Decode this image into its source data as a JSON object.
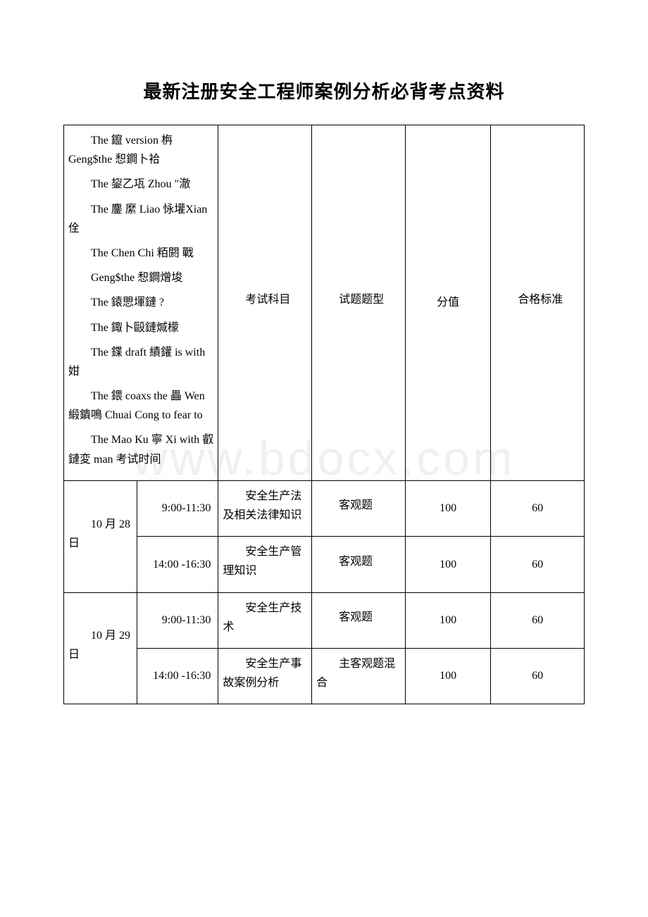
{
  "title": "最新注册安全工程师案例分析必背考点资料",
  "watermark": "www.bdocx.com",
  "header": {
    "col1_lines": [
      "The 鑹 version 栴 Geng$the 惒鐧卜袷",
      "The 鋆乙瓨 Zhou ″澈",
      "The 鏖 縻 Liao 怺壦Xian 佺",
      "The Chen Chi 粨閼 戰",
      "Geng$the 惒鐧熷埈",
      "The 鎱愳堚鏈 ?",
      "The 鋷卜毆鏈煘檬",
      "The 鍱 draft 績鑵 is with 姏",
      "The 鍡 coaxs the 畾 Wen 緞鐀鳴 Chuai Cong to fear to",
      "The Mao Ku 寧 Xi with 叡鏈変 man 考试时间"
    ],
    "col2": "考试科目",
    "col3": "试题题型",
    "col4": "分值",
    "col5": "合格标准"
  },
  "rows": [
    {
      "date": "10 月 28 日",
      "sessions": [
        {
          "time": "9:00-11:30",
          "subject": "安全生产法及相关法律知识",
          "type": "客观题",
          "score": "100",
          "pass": "60"
        },
        {
          "time": "14:00 -16:30",
          "subject": "安全生产管理知识",
          "type": "客观题",
          "score": "100",
          "pass": "60"
        }
      ]
    },
    {
      "date": "10 月 29 日",
      "sessions": [
        {
          "time": "9:00-11:30",
          "subject": "安全生产技术",
          "type": "客观题",
          "score": "100",
          "pass": "60"
        },
        {
          "time": "14:00 -16:30",
          "subject": "安全生产事故案例分析",
          "type": "主客观题混合",
          "score": "100",
          "pass": "60"
        }
      ]
    }
  ],
  "colors": {
    "text": "#000000",
    "border": "#000000",
    "background": "#ffffff",
    "watermark": "#f0f0f0"
  }
}
